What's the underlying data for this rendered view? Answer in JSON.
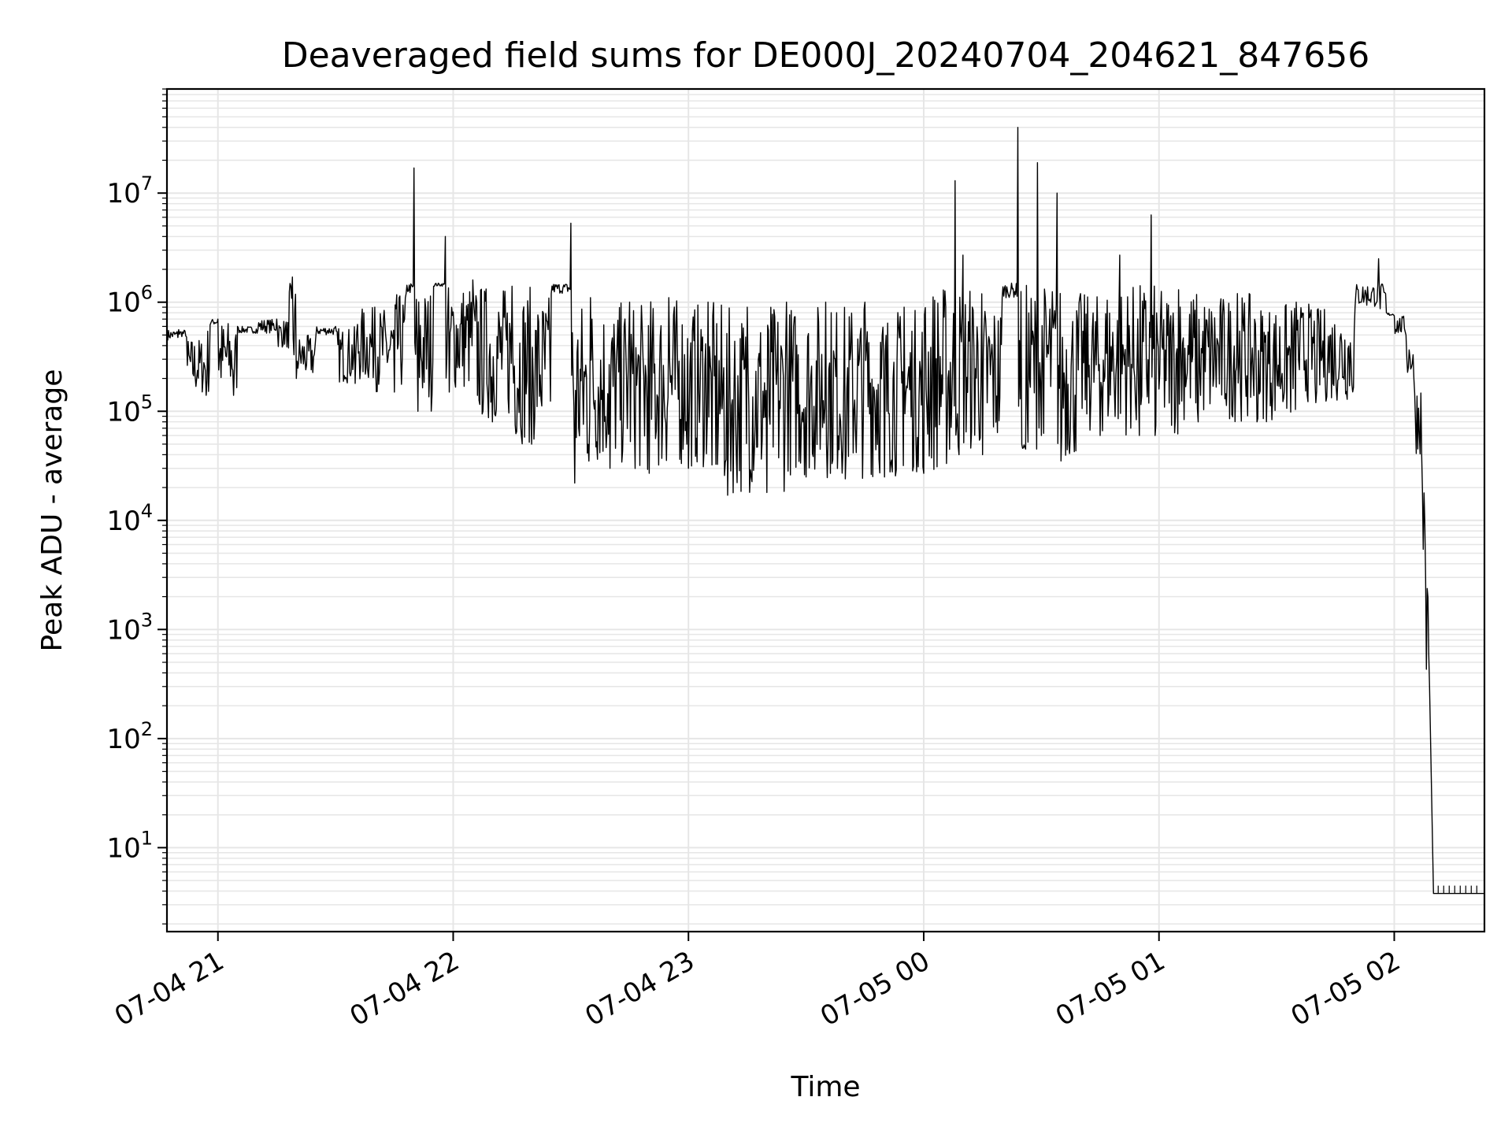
{
  "chart_data": {
    "type": "line",
    "title": "Deaveraged field sums for DE000J_20240704_204621_847656",
    "xlabel": "Time",
    "ylabel": "Peak ADU - average",
    "yscale": "log",
    "grid": true,
    "grid_color": "#e6e6e6",
    "line_color": "#000000",
    "xlim": [
      "2024-07-04 20:47",
      "2024-07-05 02:23"
    ],
    "ylim": [
      1.7,
      90000000
    ],
    "x_tick_labels": [
      "07-04 21",
      "07-04 22",
      "07-04 23",
      "07-05 00",
      "07-05 01",
      "07-05 02"
    ],
    "x_tick_values": [
      "2024-07-04 21:00",
      "2024-07-04 22:00",
      "2024-07-04 23:00",
      "2024-07-05 00:00",
      "2024-07-05 01:00",
      "2024-07-05 02:00"
    ],
    "y_ticks": [
      {
        "value": 10,
        "base": "10",
        "exp": "1"
      },
      {
        "value": 100,
        "base": "10",
        "exp": "2"
      },
      {
        "value": 1000,
        "base": "10",
        "exp": "3"
      },
      {
        "value": 10000,
        "base": "10",
        "exp": "4"
      },
      {
        "value": 100000,
        "base": "10",
        "exp": "5"
      },
      {
        "value": 1000000,
        "base": "10",
        "exp": "6"
      },
      {
        "value": 10000000,
        "base": "10",
        "exp": "7"
      }
    ],
    "series": [
      {
        "points": [
          [
            "2024-07-04 20:47",
            450000
          ],
          [
            "2024-07-04 20:50",
            560000
          ],
          [
            "2024-07-04 20:52",
            480000
          ],
          [
            "2024-07-04 20:57",
            140000
          ],
          [
            "2024-07-04 20:58",
            620000
          ],
          [
            "2024-07-04 21:00",
            700000
          ],
          [
            "2024-07-04 21:04",
            140000
          ],
          [
            "2024-07-04 21:05",
            600000
          ],
          [
            "2024-07-04 21:10",
            520000
          ],
          [
            "2024-07-04 21:15",
            700000
          ],
          [
            "2024-07-04 21:18",
            380000
          ],
          [
            "2024-07-04 21:19",
            1700000
          ],
          [
            "2024-07-04 21:20",
            200000
          ],
          [
            "2024-07-04 21:25",
            500000
          ],
          [
            "2024-07-04 21:30",
            600000
          ],
          [
            "2024-07-04 21:35",
            180000
          ],
          [
            "2024-07-04 21:40",
            900000
          ],
          [
            "2024-07-04 21:45",
            150000
          ],
          [
            "2024-07-04 21:48",
            1200000
          ],
          [
            "2024-07-04 21:50",
            17000000
          ],
          [
            "2024-07-04 21:51",
            100000
          ],
          [
            "2024-07-04 21:55",
            1400000
          ],
          [
            "2024-07-04 21:58",
            4000000
          ],
          [
            "2024-07-04 21:59",
            150000
          ],
          [
            "2024-07-04 22:05",
            1600000
          ],
          [
            "2024-07-04 22:10",
            80000
          ],
          [
            "2024-07-04 22:15",
            1400000
          ],
          [
            "2024-07-04 22:20",
            50000
          ],
          [
            "2024-07-04 22:25",
            1200000
          ],
          [
            "2024-07-04 22:30",
            5300000
          ],
          [
            "2024-07-04 22:31",
            22000
          ],
          [
            "2024-07-04 22:35",
            1100000
          ],
          [
            "2024-07-04 22:40",
            30000
          ],
          [
            "2024-07-04 22:45",
            1000000
          ],
          [
            "2024-07-04 22:50",
            27000
          ],
          [
            "2024-07-04 22:55",
            1100000
          ],
          [
            "2024-07-04 23:00",
            30000
          ],
          [
            "2024-07-04 23:05",
            1000000
          ],
          [
            "2024-07-04 23:10",
            17000
          ],
          [
            "2024-07-04 23:15",
            900000
          ],
          [
            "2024-07-04 23:20",
            18000
          ],
          [
            "2024-07-04 23:25",
            1000000
          ],
          [
            "2024-07-04 23:30",
            25000
          ],
          [
            "2024-07-04 23:35",
            1000000
          ],
          [
            "2024-07-04 23:40",
            24000
          ],
          [
            "2024-07-04 23:45",
            1000000
          ],
          [
            "2024-07-04 23:50",
            25000
          ],
          [
            "2024-07-04 23:55",
            900000
          ],
          [
            "2024-07-05 00:00",
            27000
          ],
          [
            "2024-07-05 00:08",
            13000000
          ],
          [
            "2024-07-05 00:09",
            40000
          ],
          [
            "2024-07-05 00:10",
            2700000
          ],
          [
            "2024-07-05 00:15",
            40000
          ],
          [
            "2024-07-05 00:20",
            1100000
          ],
          [
            "2024-07-05 00:25",
            50000
          ],
          [
            "2024-07-05 00:24",
            40000000
          ],
          [
            "2024-07-05 00:26",
            45000
          ],
          [
            "2024-07-05 00:29",
            19000000
          ],
          [
            "2024-07-05 00:30",
            60000
          ],
          [
            "2024-07-05 00:34",
            10000000
          ],
          [
            "2024-07-05 00:35",
            35000
          ],
          [
            "2024-07-05 00:40",
            1200000
          ],
          [
            "2024-07-05 00:45",
            60000
          ],
          [
            "2024-07-05 00:50",
            2700000
          ],
          [
            "2024-07-05 00:55",
            60000
          ],
          [
            "2024-07-05 00:58",
            6300000
          ],
          [
            "2024-07-05 00:59",
            60000
          ],
          [
            "2024-07-05 01:05",
            1300000
          ],
          [
            "2024-07-05 01:10",
            80000
          ],
          [
            "2024-07-05 01:20",
            1200000
          ],
          [
            "2024-07-05 01:25",
            80000
          ],
          [
            "2024-07-05 01:35",
            1000000
          ],
          [
            "2024-07-05 01:40",
            120000
          ],
          [
            "2024-07-05 01:50",
            900000
          ],
          [
            "2024-07-05 01:56",
            2500000
          ],
          [
            "2024-07-05 01:58",
            800000
          ],
          [
            "2024-07-05 02:00",
            750000
          ],
          [
            "2024-07-05 02:03",
            500000
          ],
          [
            "2024-07-05 02:05",
            200000
          ],
          [
            "2024-07-05 02:07",
            40000
          ],
          [
            "2024-07-05 02:08",
            3000
          ],
          [
            "2024-07-05 02:09",
            300
          ],
          [
            "2024-07-05 02:10",
            3.8
          ],
          [
            "2024-07-05 02:23",
            3.8
          ]
        ]
      }
    ]
  }
}
